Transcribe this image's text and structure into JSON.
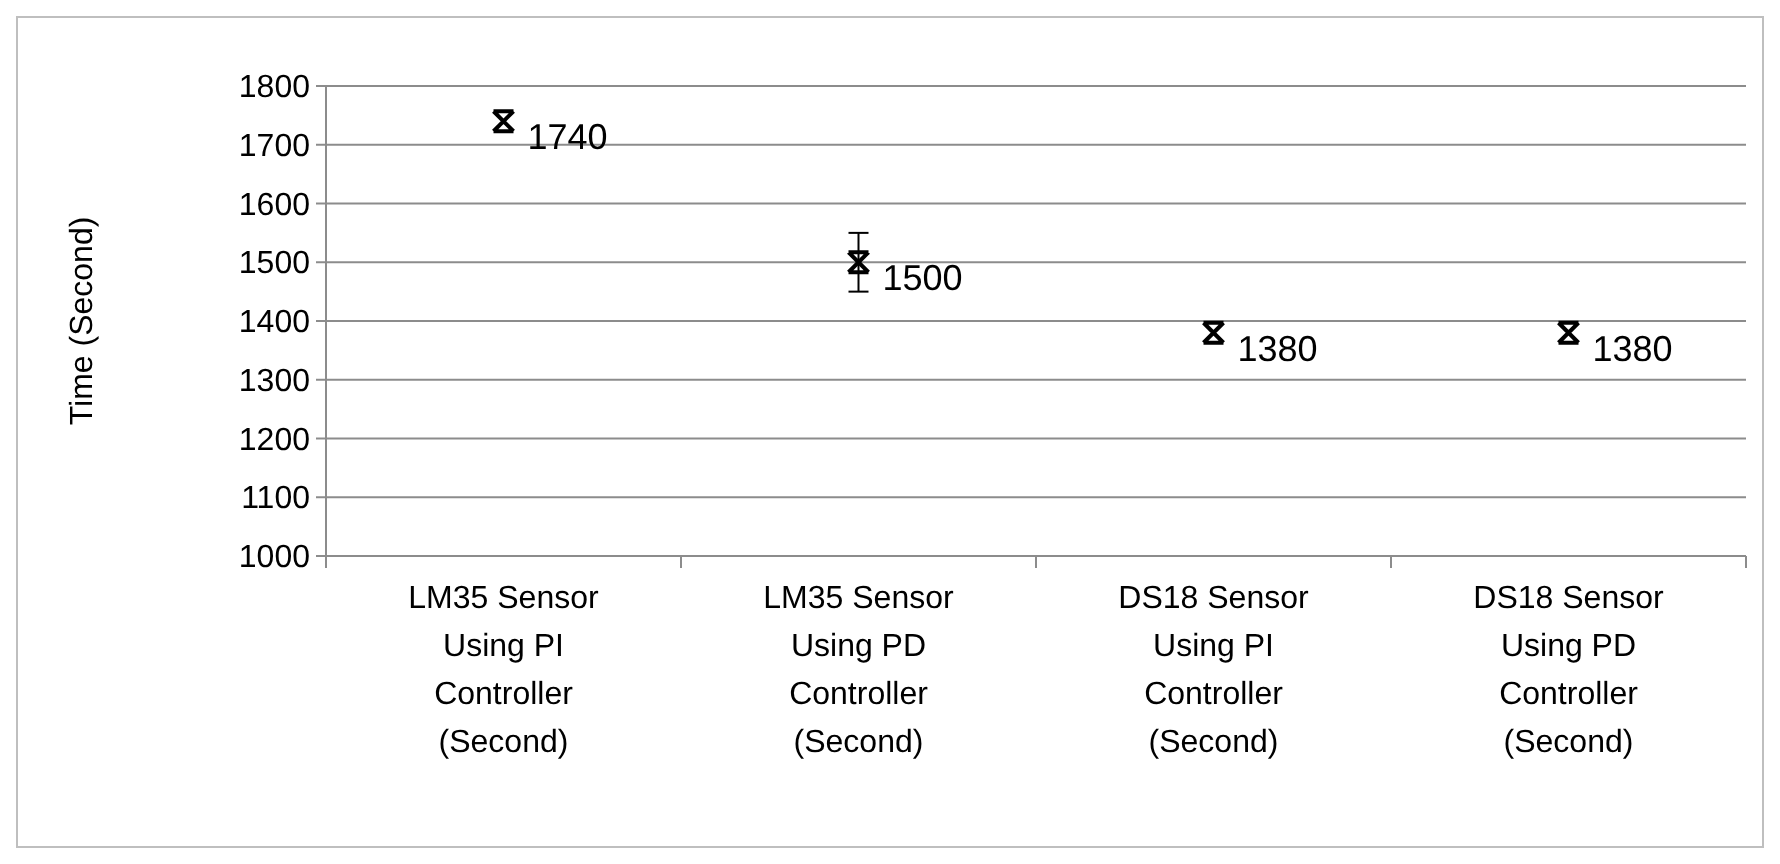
{
  "chart_data": {
    "type": "scatter",
    "ylabel": "Time (Second)",
    "categories": [
      "LM35 Sensor Using PI Controller (Second)",
      "LM35 Sensor Using PD Controller (Second)",
      "DS18 Sensor Using PI Controller (Second)",
      "DS18 Sensor Using PD Controller (Second)"
    ],
    "values": [
      1740,
      1500,
      1380,
      1380
    ],
    "errors": [
      null,
      50,
      null,
      null
    ],
    "color": "#000000",
    "marker": "cross",
    "data_labels": true,
    "ylim": [
      1000,
      1800
    ],
    "yticks": [
      1000,
      1100,
      1200,
      1300,
      1400,
      1500,
      1600,
      1700,
      1800
    ],
    "grid": "y"
  }
}
